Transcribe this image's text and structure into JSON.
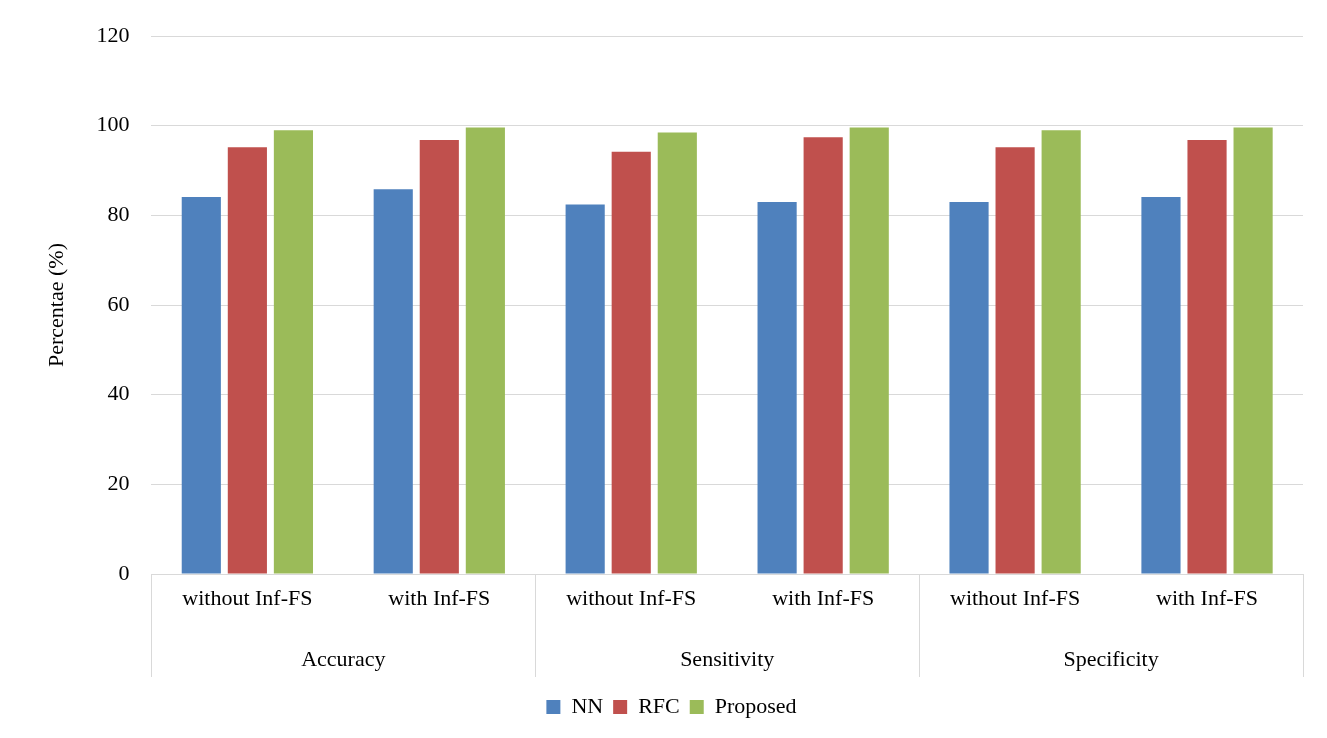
{
  "chart_data": {
    "type": "bar",
    "ylabel": "Percentae (%)",
    "categories": [
      "without Inf-FS",
      "with Inf-FS",
      "without Inf-FS",
      "with Inf-FS",
      "without Inf-FS",
      "with Inf-FS"
    ],
    "annotations": [
      "Accuracy",
      "Sensitivity",
      "Specificity"
    ],
    "series": [
      {
        "name": "NN",
        "color": "#4f81bd",
        "values": [
          84.1,
          85.8,
          82.4,
          83.0,
          83.0,
          84.1
        ]
      },
      {
        "name": "RFC",
        "color": "#c0504d",
        "values": [
          95.2,
          96.8,
          94.2,
          97.4,
          95.2,
          96.8
        ]
      },
      {
        "name": "Proposed",
        "color": "#9bbb59",
        "values": [
          99.0,
          99.6,
          98.5,
          99.6,
          99.0,
          99.6
        ]
      }
    ],
    "ylim": [
      0,
      120
    ],
    "yticks": [
      0,
      20,
      40,
      60,
      80,
      100,
      120
    ],
    "grid": "y",
    "legend": "bottom"
  }
}
